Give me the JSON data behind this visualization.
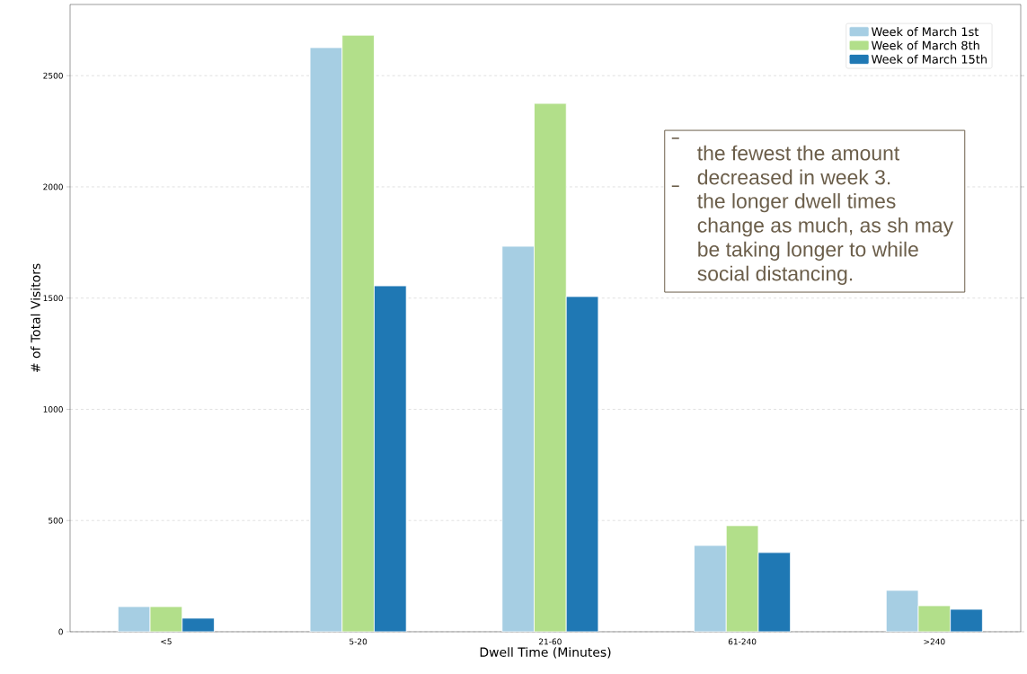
{
  "chart_data": {
    "type": "bar",
    "xlabel": "Dwell Time (Minutes)",
    "ylabel": "# of Total Visitors",
    "categories": [
      "<5",
      "5-20",
      "21-60",
      "61-240",
      ">240"
    ],
    "series": [
      {
        "name": "Week of March 1st",
        "color": "#a6cee3",
        "values": [
          113,
          2626,
          1733,
          388,
          186
        ]
      },
      {
        "name": "Week of March 8th",
        "color": "#b2df8a",
        "values": [
          113,
          2682,
          2375,
          477,
          117
        ]
      },
      {
        "name": "Week of March 15th",
        "color": "#1f78b4",
        "values": [
          61,
          1555,
          1507,
          356,
          101
        ]
      }
    ],
    "ylim": [
      0,
      2820
    ],
    "yticks": [
      0,
      500,
      1000,
      1500,
      2000,
      2500
    ],
    "grid": "y",
    "legend": "top right",
    "annotations": [
      "the fewest the amount decreased in week 3.",
      "the longer dwell times change as much, as sh may be taking longer to while social distancing."
    ]
  }
}
